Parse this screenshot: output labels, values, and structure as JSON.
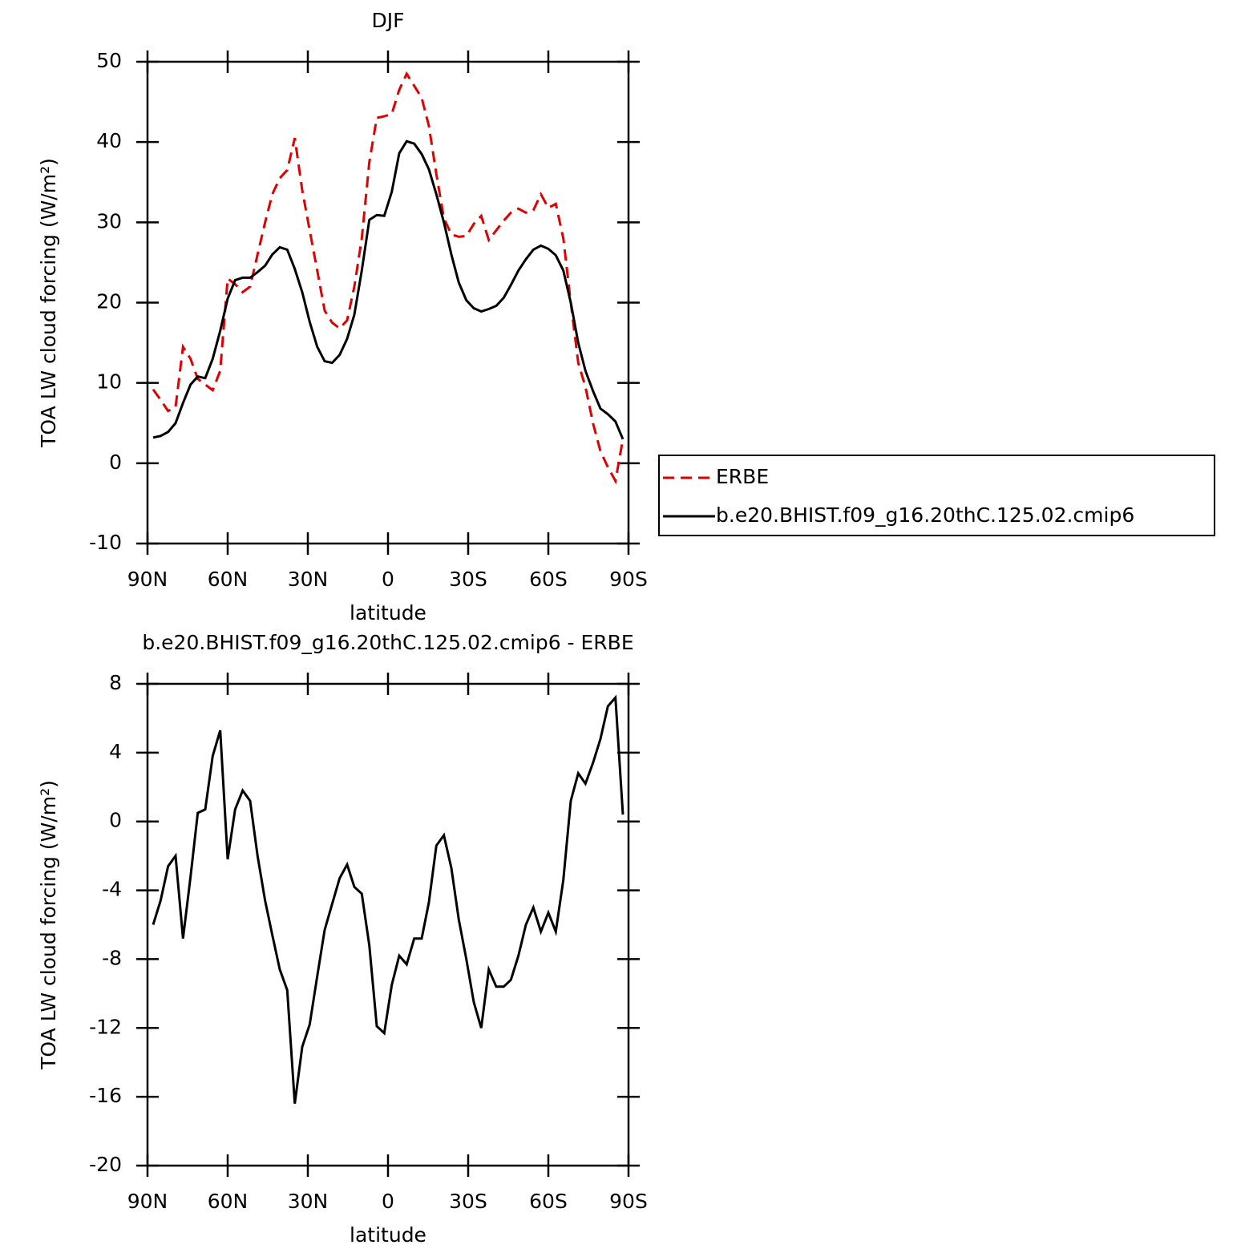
{
  "chart_data": [
    {
      "type": "line",
      "title": "DJF",
      "xlabel": "latitude",
      "ylabel": "TOA LW cloud forcing (W/m²)",
      "x": [
        87.9,
        85.1,
        82.3,
        79.5,
        76.7,
        73.9,
        71.2,
        68.4,
        65.6,
        62.8,
        60.0,
        57.2,
        54.4,
        51.6,
        48.8,
        46.0,
        43.3,
        40.5,
        37.7,
        34.9,
        32.1,
        29.3,
        26.5,
        23.7,
        20.9,
        18.1,
        15.3,
        12.6,
        9.8,
        7.0,
        4.2,
        1.4,
        -1.4,
        -4.2,
        -7.0,
        -9.8,
        -12.6,
        -15.3,
        -18.1,
        -20.9,
        -23.7,
        -26.5,
        -29.3,
        -32.1,
        -34.9,
        -37.7,
        -40.5,
        -43.3,
        -46.0,
        -48.8,
        -51.6,
        -54.4,
        -57.2,
        -60.0,
        -62.8,
        -65.6,
        -68.4,
        -71.2,
        -73.9,
        -76.7,
        -79.5,
        -82.3,
        -85.1,
        -87.9
      ],
      "series": [
        {
          "name": "ERBE",
          "color": "#e00000",
          "dash": "dashed",
          "values": [
            9.2,
            7.9,
            6.5,
            7.0,
            14.5,
            13.0,
            10.5,
            9.8,
            9.1,
            11.5,
            23.0,
            22.3,
            21.3,
            22.0,
            26.0,
            30.0,
            33.5,
            35.5,
            36.5,
            40.5,
            34.0,
            29.0,
            24.0,
            19.0,
            17.5,
            16.8,
            17.8,
            22.0,
            28.0,
            37.5,
            43.0,
            43.2,
            43.5,
            46.5,
            48.5,
            47.0,
            45.5,
            42.0,
            36.0,
            30.5,
            28.5,
            28.2,
            28.3,
            29.8,
            30.8,
            27.8,
            29.0,
            30.2,
            31.2,
            31.7,
            31.2,
            31.5,
            33.5,
            31.8,
            32.3,
            28.0,
            20.0,
            12.5,
            9.5,
            5.0,
            1.5,
            -0.5,
            -2.2,
            3.0
          ]
        },
        {
          "name": "b.e20.BHIST.f09_g16.20thC.125.02.cmip6",
          "color": "#000000",
          "dash": "solid",
          "values": [
            3.2,
            3.4,
            3.9,
            5.0,
            7.5,
            9.8,
            10.8,
            10.6,
            13.0,
            16.5,
            20.5,
            22.8,
            23.1,
            23.1,
            23.8,
            24.6,
            26.0,
            26.9,
            26.6,
            24.2,
            21.3,
            17.6,
            14.5,
            12.7,
            12.5,
            13.5,
            15.5,
            18.5,
            24.0,
            30.3,
            30.9,
            30.8,
            33.8,
            38.6,
            40.1,
            39.8,
            38.5,
            36.6,
            33.5,
            30.0,
            26.0,
            22.5,
            20.3,
            19.3,
            18.9,
            19.2,
            19.6,
            20.6,
            22.2,
            24.0,
            25.4,
            26.6,
            27.1,
            26.7,
            25.9,
            24.0,
            20.0,
            15.0,
            11.5,
            9.0,
            6.8,
            6.1,
            5.2,
            3.0
          ]
        }
      ],
      "xlim": [
        90,
        -90
      ],
      "xticks": [
        {
          "value": 90,
          "label": "90N"
        },
        {
          "value": 60,
          "label": "60N"
        },
        {
          "value": 30,
          "label": "30N"
        },
        0,
        {
          "value": -30,
          "label": "30S"
        },
        {
          "value": -60,
          "label": "60S"
        },
        {
          "value": -90,
          "label": "90S"
        }
      ],
      "ylim": [
        -10,
        50
      ],
      "yticks": [
        -10,
        0,
        10,
        20,
        30,
        40,
        50
      ],
      "legend": "right"
    },
    {
      "type": "line",
      "title": "b.e20.BHIST.f09_g16.20thC.125.02.cmip6 - ERBE",
      "xlabel": "latitude",
      "ylabel": "TOA LW cloud forcing (W/m²)",
      "x": [
        87.9,
        85.1,
        82.3,
        79.5,
        76.7,
        73.9,
        71.2,
        68.4,
        65.6,
        62.8,
        60.0,
        57.2,
        54.4,
        51.6,
        48.8,
        46.0,
        43.3,
        40.5,
        37.7,
        34.9,
        32.1,
        29.3,
        26.5,
        23.7,
        20.9,
        18.1,
        15.3,
        12.6,
        9.8,
        7.0,
        4.2,
        1.4,
        -1.4,
        -4.2,
        -7.0,
        -9.8,
        -12.6,
        -15.3,
        -18.1,
        -20.9,
        -23.7,
        -26.5,
        -29.3,
        -32.1,
        -34.9,
        -37.7,
        -40.5,
        -43.3,
        -46.0,
        -48.8,
        -51.6,
        -54.4,
        -57.2,
        -60.0,
        -62.8,
        -65.6,
        -68.4,
        -71.2,
        -73.9,
        -76.7,
        -79.5,
        -82.3,
        -85.1,
        -87.9
      ],
      "color": "#000000",
      "values": [
        -6.0,
        -4.6,
        -2.6,
        -2.0,
        -6.8,
        -3.2,
        0.5,
        0.7,
        3.8,
        5.3,
        -2.2,
        0.7,
        1.8,
        1.2,
        -2.0,
        -4.6,
        -6.6,
        -8.6,
        -9.8,
        -16.4,
        -13.1,
        -11.8,
        -9.0,
        -6.3,
        -4.8,
        -3.3,
        -2.5,
        -3.8,
        -4.2,
        -7.2,
        -11.9,
        -12.3,
        -9.5,
        -7.8,
        -8.3,
        -6.8,
        -6.8,
        -4.7,
        -1.4,
        -0.8,
        -2.7,
        -5.7,
        -8.0,
        -10.5,
        -12.0,
        -8.6,
        -9.6,
        -9.6,
        -9.2,
        -7.8,
        -6.0,
        -5.0,
        -6.4,
        -5.3,
        -6.4,
        -3.4,
        1.2,
        2.8,
        2.2,
        3.4,
        4.8,
        6.7,
        7.2,
        0.4
      ],
      "xlim": [
        90,
        -90
      ],
      "xticks": [
        {
          "value": 90,
          "label": "90N"
        },
        {
          "value": 60,
          "label": "60N"
        },
        {
          "value": 30,
          "label": "30N"
        },
        0,
        {
          "value": -30,
          "label": "30S"
        },
        {
          "value": -60,
          "label": "60S"
        },
        {
          "value": -90,
          "label": "90S"
        }
      ],
      "ylim": [
        -20,
        8
      ],
      "yticks": [
        -20,
        -16,
        -12,
        -8,
        -4,
        0,
        4,
        8
      ]
    }
  ]
}
